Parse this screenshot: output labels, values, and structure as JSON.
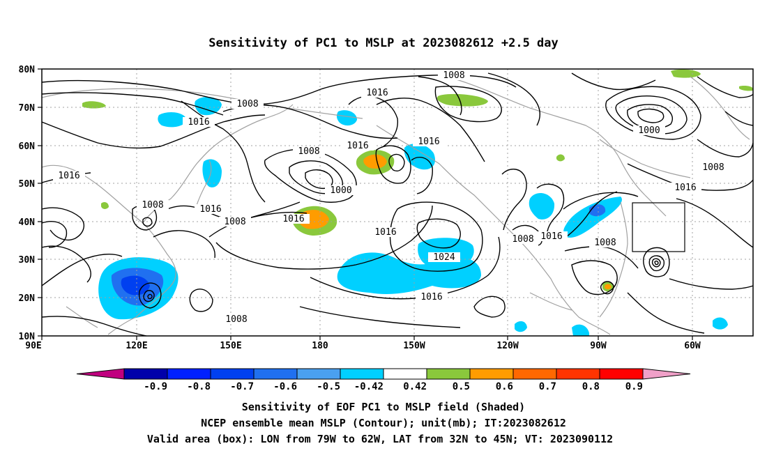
{
  "title": "Sensitivity of PC1 to MSLP at 2023082612 +2.5 day",
  "axes": {
    "y_ticks": [
      "80N",
      "70N",
      "60N",
      "50N",
      "40N",
      "30N",
      "20N",
      "10N"
    ],
    "x_ticks": [
      "90E",
      "120E",
      "150E",
      "180",
      "150W",
      "120W",
      "90W",
      "60W"
    ]
  },
  "contour_labels": [
    {
      "text": "1008"
    },
    {
      "text": "1016"
    },
    {
      "text": "1008"
    },
    {
      "text": "1016"
    },
    {
      "text": "1016"
    },
    {
      "text": "1016"
    },
    {
      "text": "1008"
    },
    {
      "text": "1016"
    },
    {
      "text": "1000"
    },
    {
      "text": "1008"
    },
    {
      "text": "1016"
    },
    {
      "text": "1008"
    },
    {
      "text": "1016"
    },
    {
      "text": "1016"
    },
    {
      "text": "1024"
    },
    {
      "text": "1016"
    },
    {
      "text": "1008"
    },
    {
      "text": "1016"
    },
    {
      "text": "1008"
    },
    {
      "text": "1000"
    },
    {
      "text": "1008"
    },
    {
      "text": "1016"
    }
  ],
  "colorbar": {
    "labels": [
      "-0.9",
      "-0.8",
      "-0.7",
      "-0.6",
      "-0.5",
      "-0.42",
      "0.42",
      "0.5",
      "0.6",
      "0.7",
      "0.8",
      "0.9"
    ],
    "colors": [
      "#c0007f",
      "#0000aa",
      "#0020ff",
      "#0040f0",
      "#2070f0",
      "#4aa0f0",
      "#00d0ff",
      "#ffffff",
      "#8ac83c",
      "#ff9c00",
      "#ff6800",
      "#ff3400",
      "#ff0000",
      "#f0a0c8"
    ]
  },
  "footer": {
    "line1": "Sensitivity of EOF PC1 to MSLP field (Shaded)",
    "line2": "NCEP ensemble mean MSLP (Contour); unit(mb); IT:2023082612",
    "line3": "Valid area (box): LON from 79W to 62W, LAT from 32N to 45N; VT: 2023090112"
  },
  "colors": {
    "contour": "#000000",
    "coastline": "#a0a0a0",
    "grid": "#a0a0a0",
    "cyan": "#00d0ff",
    "blue": "#0040f0",
    "green": "#8ac83c",
    "orange": "#ff9c00"
  }
}
